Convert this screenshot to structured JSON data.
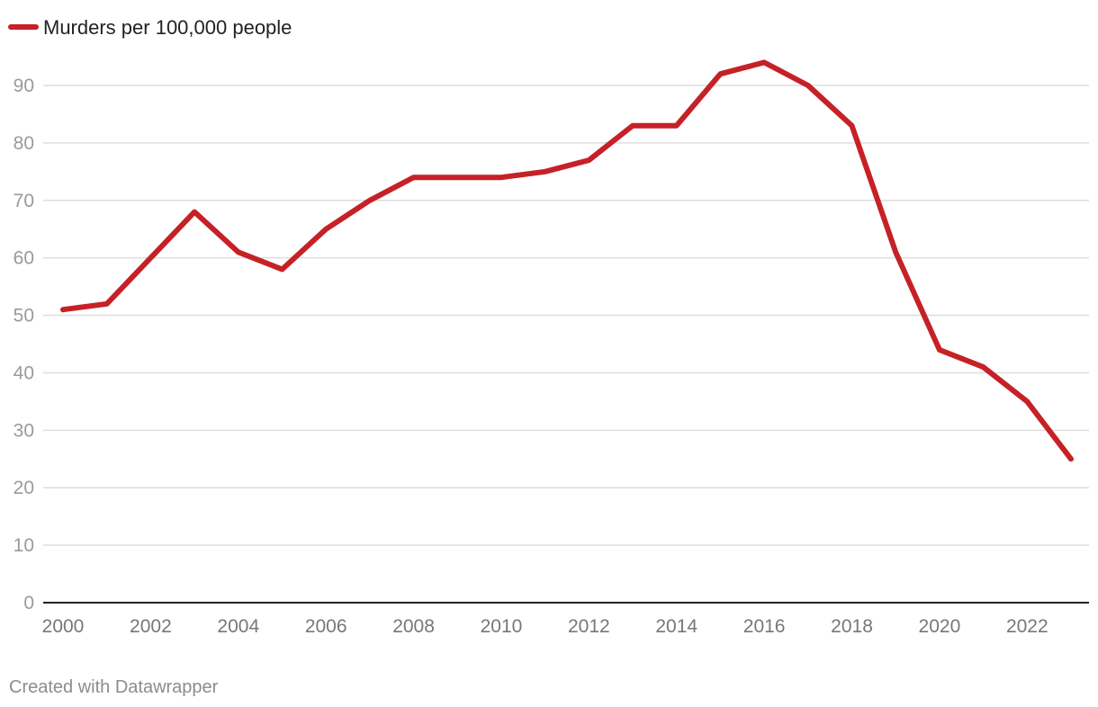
{
  "footer": "Created with Datawrapper",
  "chart_data": {
    "type": "line",
    "title": "",
    "xlabel": "",
    "ylabel": "",
    "x": [
      2000,
      2001,
      2002,
      2003,
      2004,
      2005,
      2006,
      2007,
      2008,
      2009,
      2010,
      2011,
      2012,
      2013,
      2014,
      2015,
      2016,
      2017,
      2018,
      2019,
      2020,
      2021,
      2022,
      2023
    ],
    "series": [
      {
        "name": "Murders per 100,000 people",
        "color": "#c52127",
        "values": [
          51,
          52,
          60,
          68,
          61,
          58,
          65,
          70,
          74,
          74,
          74,
          75,
          77,
          83,
          83,
          92,
          94,
          90,
          83,
          61,
          44,
          41,
          35,
          25
        ]
      }
    ],
    "xlim": [
      2000,
      2023
    ],
    "ylim": [
      0,
      90
    ],
    "x_ticks": [
      2000,
      2002,
      2004,
      2006,
      2008,
      2010,
      2012,
      2014,
      2016,
      2018,
      2020,
      2022
    ],
    "x_tick_labels": [
      "2000",
      "2002",
      "2004",
      "2006",
      "2008",
      "2010",
      "2012",
      "2014",
      "2016",
      "2018",
      "2020",
      "2022"
    ],
    "y_ticks": [
      0,
      10,
      20,
      30,
      40,
      50,
      60,
      70,
      80,
      90
    ],
    "y_tick_labels": [
      "0",
      "10",
      "20",
      "30",
      "40",
      "50",
      "60",
      "70",
      "80",
      "90"
    ],
    "grid": true,
    "legend": "top-left"
  }
}
